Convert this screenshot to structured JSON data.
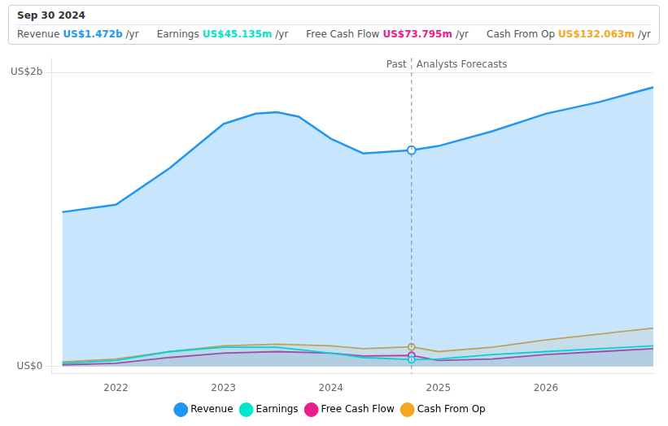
{
  "chart_data": {
    "type": "area",
    "series": [
      {
        "name": "Revenue",
        "color": "#2196f3",
        "x": [
          2021.5,
          2022.0,
          2022.5,
          2023.0,
          2023.3,
          2023.5,
          2023.7,
          2024.0,
          2024.3,
          2024.75,
          2025.0,
          2025.5,
          2026.0,
          2026.5,
          2027.0
        ],
        "values": [
          1.05,
          1.1,
          1.35,
          1.65,
          1.72,
          1.73,
          1.7,
          1.55,
          1.45,
          1.472,
          1.5,
          1.6,
          1.72,
          1.8,
          1.9
        ]
      },
      {
        "name": "Earnings",
        "color": "#00e5cc",
        "x": [
          2021.5,
          2022.0,
          2022.5,
          2023.0,
          2023.5,
          2024.0,
          2024.3,
          2024.75,
          2025.0,
          2025.5,
          2026.0,
          2026.5,
          2027.0
        ],
        "values": [
          0.02,
          0.04,
          0.1,
          0.13,
          0.13,
          0.09,
          0.06,
          0.04514,
          0.05,
          0.08,
          0.1,
          0.12,
          0.14
        ]
      },
      {
        "name": "Free Cash Flow",
        "color": "#e91e8c",
        "x": [
          2021.5,
          2022.0,
          2022.5,
          2023.0,
          2023.5,
          2024.0,
          2024.3,
          2024.75,
          2025.0,
          2025.5,
          2026.0,
          2026.5,
          2027.0
        ],
        "values": [
          0.01,
          0.02,
          0.06,
          0.09,
          0.1,
          0.09,
          0.07,
          0.0738,
          0.04,
          0.05,
          0.08,
          0.1,
          0.12
        ]
      },
      {
        "name": "Cash From Op",
        "color": "#f5a623",
        "x": [
          2021.5,
          2022.0,
          2022.5,
          2023.0,
          2023.5,
          2024.0,
          2024.3,
          2024.75,
          2025.0,
          2025.5,
          2026.0,
          2026.5,
          2027.0
        ],
        "values": [
          0.03,
          0.05,
          0.1,
          0.14,
          0.15,
          0.14,
          0.12,
          0.13206,
          0.1,
          0.13,
          0.18,
          0.22,
          0.26
        ]
      }
    ],
    "xlim": [
      2021.4,
      2027.0
    ],
    "xticks": [
      2022,
      2023,
      2024,
      2025,
      2026
    ],
    "ylim": [
      -0.05,
      2.1
    ],
    "yticks": [
      {
        "value": 0,
        "label": "US$0"
      },
      {
        "value": 2,
        "label": "US$2b"
      }
    ],
    "grid": true,
    "legend": "bottom",
    "divider": {
      "x": 2024.75,
      "labels": [
        "Past",
        "Analysts Forecasts"
      ]
    },
    "tooltip": {
      "title": "Sep 30 2024",
      "rows": [
        {
          "label": "Revenue",
          "value": "US$1.472b",
          "per": "/yr"
        },
        {
          "label": "Earnings",
          "value": "US$45.135m",
          "per": "/yr"
        },
        {
          "label": "Free Cash Flow",
          "value": "US$73.795m",
          "per": "/yr"
        },
        {
          "label": "Cash From Op",
          "value": "US$132.063m",
          "per": "/yr"
        }
      ]
    }
  }
}
